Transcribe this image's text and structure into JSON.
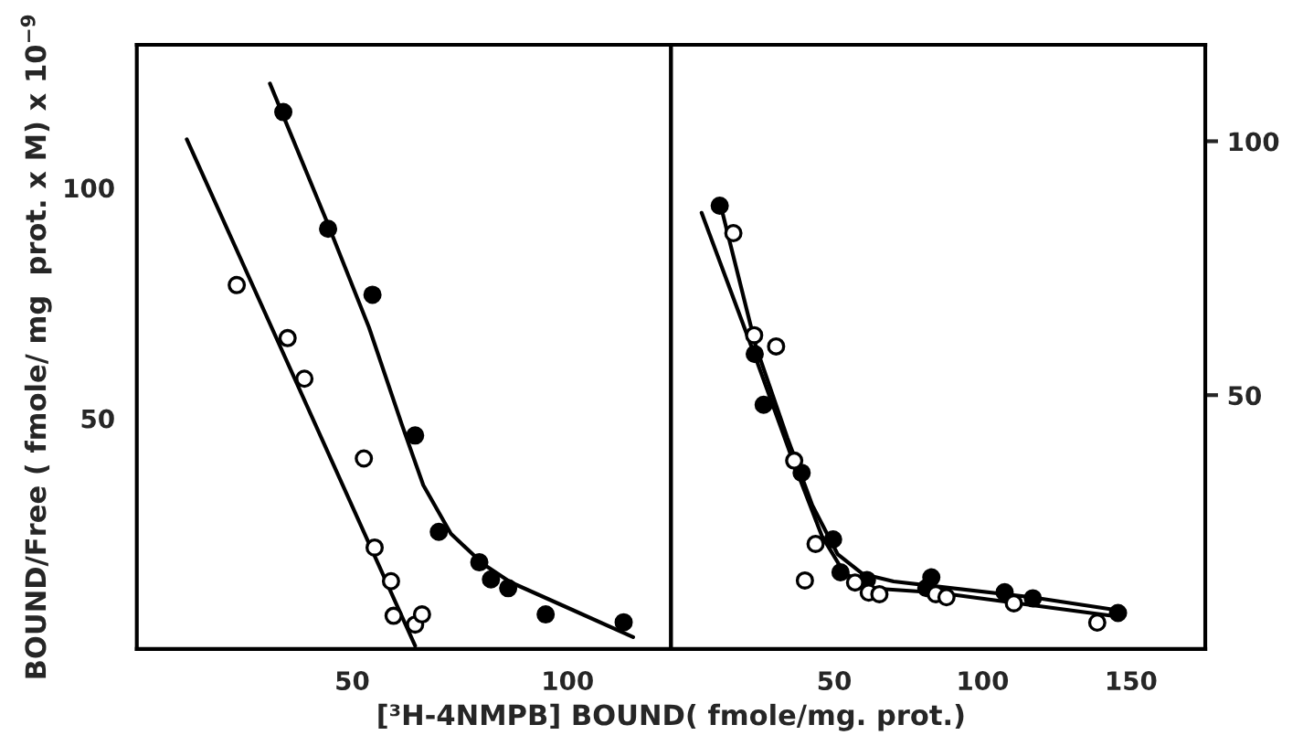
{
  "chart_data": [
    {
      "type": "scatter",
      "xlabel": "[³H-4NMPB] BOUND( fmole/mg. prot.)",
      "ylabel": "BOUND/Free ( fmole/ mg  prot. x M) x 10$^{−9}$",
      "xlim": [
        0,
        124
      ],
      "ylim": [
        0,
        131
      ],
      "xticks": [
        50,
        100
      ],
      "yticks": [
        50,
        100
      ],
      "grid": false,
      "legend": false,
      "tick_labels": "xy",
      "series": [
        {
          "marker": "circle",
          "color": "#000000",
          "x": [
            34.0,
            44.4,
            54.7,
            64.6,
            70.1,
            79.5,
            82.2,
            86.2,
            94.9,
            113.0
          ],
          "values": [
            116.4,
            91.1,
            76.8,
            46.3,
            25.4,
            18.8,
            15.1,
            13.2,
            7.5,
            5.8
          ]
        },
        {
          "marker": "circle",
          "color": "#ffffff",
          "x": [
            23.2,
            35.0,
            38.9,
            52.7,
            55.2,
            59.0,
            59.6,
            64.6,
            66.2
          ],
          "values": [
            78.9,
            67.4,
            58.6,
            41.3,
            22.0,
            14.7,
            7.2,
            5.3,
            7.5
          ]
        },
        {
          "type": "line",
          "marker": "none",
          "color": "#000000",
          "x": [
            30.9,
            43.8,
            53.9,
            61.5,
            66.5,
            72.9,
            80.4,
            86.7,
            99.4,
            115.2
          ],
          "values": [
            122.6,
            93.4,
            69.7,
            48.7,
            35.5,
            25.0,
            18.4,
            14.5,
            9.2,
            2.6
          ]
        },
        {
          "type": "line",
          "marker": "none",
          "color": "#000000",
          "x": [
            11.6,
            64.6
          ],
          "values": [
            110.5,
            0.7
          ]
        }
      ]
    },
    {
      "type": "scatter",
      "xlim": [
        -5,
        175
      ],
      "ylim": [
        0,
        119
      ],
      "xticks": [
        50,
        100,
        150
      ],
      "yticks": [
        50,
        100
      ],
      "grid": false,
      "legend": false,
      "series": [
        {
          "marker": "circle",
          "color": "#000000",
          "x": [
            11.4,
            23.2,
            26.2,
            39.0,
            49.6,
            52.1,
            61.0,
            82.7,
            81.0,
            107.4,
            116.9,
            145.6
          ],
          "values": [
            87.3,
            58.1,
            48.1,
            34.7,
            21.6,
            15.1,
            13.6,
            14.1,
            12.0,
            11.2,
            10.0,
            7.1
          ]
        },
        {
          "marker": "circle",
          "color": "#ffffff",
          "x": [
            16.0,
            23.0,
            30.4,
            36.5,
            43.7,
            40.1,
            57.0,
            61.6,
            65.2,
            84.2,
            87.8,
            110.5,
            138.6
          ],
          "values": [
            81.9,
            61.8,
            59.6,
            37.1,
            20.7,
            13.5,
            13.1,
            11.1,
            10.8,
            10.8,
            10.2,
            9.0,
            5.2
          ]
        },
        {
          "type": "line",
          "marker": "none",
          "color": "#000000",
          "x": [
            12.0,
            23.6,
            34.2,
            42.6,
            51.1,
            59.5,
            70.0,
            116.5,
            146.0
          ],
          "values": [
            86.7,
            59.6,
            41.6,
            28.3,
            18.7,
            14.8,
            13.3,
            10.2,
            7.6
          ]
        },
        {
          "type": "line",
          "marker": "none",
          "color": "#000000",
          "x": [
            5.3,
            23.6,
            36.3,
            45.8,
            53.2,
            61.6,
            84.8,
            142.8
          ],
          "values": [
            85.9,
            57.2,
            36.7,
            22.3,
            15.1,
            12.0,
            11.1,
            6.6
          ]
        }
      ]
    }
  ]
}
